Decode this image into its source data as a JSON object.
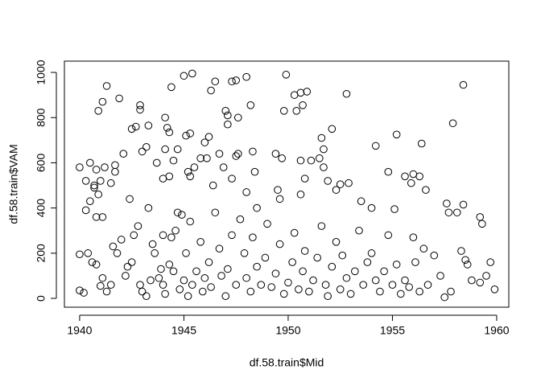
{
  "chart_data": {
    "type": "scatter",
    "x_label": "df.58.train$Mid",
    "y_label": "df.58.train$VAM",
    "color": "#000000",
    "xlim": [
      1939.27,
      1960.58
    ],
    "ylim": [
      -39,
      1050
    ],
    "xticks": [
      1940,
      1945,
      1950,
      1955,
      1960
    ],
    "yticks": [
      0,
      200,
      400,
      600,
      800,
      1000
    ],
    "x": [
      1941.3,
      1941.1,
      1940.9,
      1941.9,
      1942.9,
      1942.9,
      1942.7,
      1942.5,
      1943.3,
      1944.1,
      1944.2,
      1944.3,
      1944.4,
      1945.0,
      1945.4,
      1945.1,
      1945.3,
      1946.3,
      1946.5,
      1947.3,
      1947.5,
      1948.0,
      1948.2,
      1947.6,
      1947.0,
      1947.1,
      1947.1,
      1946.2,
      1949.9,
      1949.8,
      1950.4,
      1950.7,
      1950.6,
      1950.3,
      1950.9,
      1952.1,
      1952.8,
      1951.6,
      1951.7,
      1954.2,
      1955.2,
      1956.4,
      1957.9,
      1958.4,
      1940.0,
      1940.3,
      1940.5,
      1940.8,
      1941.2,
      1941.0,
      1940.7,
      1941.5,
      1941.7,
      1941.7,
      1942.1,
      1942.4,
      1943.0,
      1943.2,
      1943.7,
      1944.0,
      1944.3,
      1944.5,
      1944.1,
      1944.7,
      1945.2,
      1945.5,
      1945.3,
      1945.8,
      1946.0,
      1946.1,
      1946.4,
      1946.7,
      1946.9,
      1947.3,
      1947.5,
      1947.6,
      1948.0,
      1948.4,
      1948.3,
      1948.5,
      1949.4,
      1949.7,
      1949.5,
      1949.6,
      1950.6,
      1950.8,
      1950.6,
      1951.1,
      1951.5,
      1951.7,
      1951.9,
      1952.3,
      1952.5,
      1952.9,
      1953.5,
      1954.0,
      1954.8,
      1955.1,
      1955.6,
      1955.9,
      1956.0,
      1956.3,
      1956.6,
      1957.6,
      1957.7,
      1958.1,
      1958.4,
      1959.2,
      1959.3,
      1940.5,
      1940.3,
      1940.9,
      1941.1,
      1940.8,
      1940.7,
      1943.3,
      1944.0,
      1944.7,
      1944.9,
      1940.0,
      1940.0,
      1940.2,
      1940.4,
      1940.6,
      1940.8,
      1941.0,
      1941.1,
      1941.3,
      1941.5,
      1941.6,
      1941.8,
      1942.0,
      1942.2,
      1942.3,
      1942.5,
      1942.6,
      1942.8,
      1942.9,
      1943.0,
      1943.2,
      1943.4,
      1943.5,
      1943.6,
      1943.8,
      1943.9,
      1944.0,
      1944.1,
      1944.3,
      1944.4,
      1944.5,
      1944.6,
      1944.8,
      1945.0,
      1945.1,
      1945.2,
      1945.3,
      1945.4,
      1945.6,
      1945.8,
      1945.9,
      1946.0,
      1946.2,
      1946.3,
      1946.5,
      1946.7,
      1946.8,
      1947.0,
      1947.1,
      1947.3,
      1947.5,
      1947.7,
      1947.9,
      1948.0,
      1948.2,
      1948.3,
      1948.5,
      1948.7,
      1948.9,
      1949.0,
      1949.2,
      1949.4,
      1949.6,
      1949.8,
      1950.0,
      1950.2,
      1950.3,
      1950.5,
      1950.7,
      1950.8,
      1951.0,
      1951.2,
      1951.4,
      1951.6,
      1951.8,
      1951.9,
      1952.1,
      1952.3,
      1952.5,
      1952.6,
      1952.8,
      1953.0,
      1953.2,
      1953.4,
      1953.6,
      1953.8,
      1954.0,
      1954.2,
      1954.4,
      1954.6,
      1954.8,
      1955.0,
      1955.2,
      1955.4,
      1955.6,
      1955.8,
      1956.0,
      1956.1,
      1956.3,
      1956.5,
      1956.7,
      1957.0,
      1957.3,
      1957.5,
      1957.8,
      1958.3,
      1958.5,
      1958.6,
      1958.8,
      1959.2,
      1959.5,
      1959.7,
      1959.9
    ],
    "values": [
      940,
      870,
      830,
      885,
      855,
      835,
      760,
      750,
      765,
      800,
      755,
      735,
      935,
      985,
      995,
      720,
      730,
      920,
      960,
      960,
      965,
      980,
      855,
      800,
      830,
      810,
      770,
      715,
      990,
      830,
      830,
      855,
      910,
      900,
      915,
      750,
      905,
      710,
      660,
      675,
      725,
      685,
      775,
      945,
      580,
      520,
      600,
      570,
      580,
      520,
      500,
      510,
      560,
      590,
      640,
      440,
      650,
      670,
      600,
      530,
      540,
      610,
      660,
      660,
      560,
      580,
      540,
      620,
      690,
      620,
      500,
      640,
      580,
      530,
      630,
      640,
      470,
      560,
      650,
      400,
      640,
      620,
      480,
      440,
      610,
      530,
      460,
      610,
      620,
      580,
      520,
      480,
      505,
      510,
      430,
      400,
      560,
      395,
      540,
      510,
      550,
      540,
      480,
      420,
      380,
      380,
      415,
      360,
      330,
      430,
      390,
      460,
      360,
      360,
      490,
      400,
      280,
      380,
      370,
      195,
      35,
      25,
      200,
      160,
      150,
      55,
      90,
      30,
      60,
      230,
      200,
      260,
      100,
      140,
      160,
      280,
      320,
      60,
      30,
      10,
      80,
      240,
      200,
      90,
      130,
      60,
      20,
      150,
      270,
      120,
      300,
      40,
      80,
      200,
      10,
      340,
      60,
      120,
      250,
      30,
      90,
      160,
      50,
      380,
      220,
      100,
      10,
      130,
      280,
      60,
      350,
      200,
      90,
      30,
      270,
      140,
      60,
      180,
      330,
      50,
      110,
      240,
      20,
      70,
      160,
      290,
      40,
      120,
      210,
      30,
      80,
      180,
      320,
      60,
      10,
      140,
      250,
      40,
      190,
      90,
      20,
      120,
      300,
      60,
      160,
      200,
      80,
      30,
      120,
      280,
      60,
      150,
      20,
      80,
      50,
      270,
      160,
      30,
      220,
      60,
      190,
      100,
      5,
      30,
      210,
      170,
      150,
      80,
      70,
      100,
      160,
      40
    ]
  }
}
